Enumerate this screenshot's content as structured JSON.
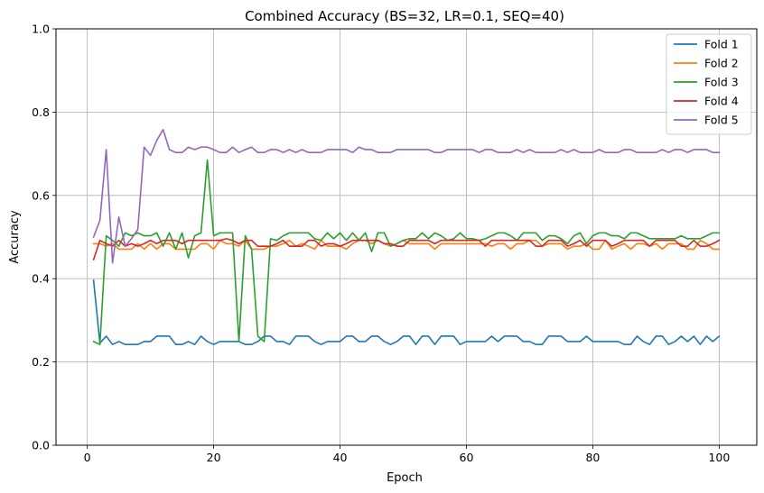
{
  "chart_data": {
    "type": "line",
    "title": "Combined Accuracy (BS=32, LR=0.1, SEQ=40)",
    "xlabel": "Epoch",
    "ylabel": "Accuracy",
    "xlim": [
      -4.95,
      105.95
    ],
    "ylim": [
      0.0,
      1.0
    ],
    "xticks": [
      0,
      20,
      40,
      60,
      80,
      100
    ],
    "yticks": [
      0.0,
      0.2,
      0.4,
      0.6,
      0.8,
      1.0
    ],
    "xtick_labels": [
      "0",
      "20",
      "40",
      "60",
      "80",
      "100"
    ],
    "ytick_labels": [
      "0.0",
      "0.2",
      "0.4",
      "0.6",
      "0.8",
      "1.0"
    ],
    "grid": true,
    "legend_position": "top-right",
    "x_start": 1,
    "x_end": 100,
    "series": [
      {
        "name": "Fold 1",
        "color": "#1f77b4",
        "values": [
          0.396,
          0.245,
          0.262,
          0.242,
          0.249,
          0.242,
          0.242,
          0.242,
          0.249,
          0.249,
          0.262,
          0.262,
          0.262,
          0.242,
          0.242,
          0.249,
          0.242,
          0.262,
          0.249,
          0.242,
          0.249,
          0.249,
          0.249,
          0.249,
          0.242,
          0.242,
          0.249,
          0.262,
          0.262,
          0.249,
          0.249,
          0.242,
          0.262,
          0.262,
          0.262,
          0.249,
          0.242,
          0.249,
          0.249,
          0.249,
          0.262,
          0.262,
          0.249,
          0.249,
          0.262,
          0.262,
          0.249,
          0.242,
          0.249,
          0.262,
          0.262,
          0.242,
          0.262,
          0.262,
          0.242,
          0.262,
          0.262,
          0.262,
          0.242,
          0.249,
          0.249,
          0.249,
          0.249,
          0.262,
          0.249,
          0.262,
          0.262,
          0.262,
          0.249,
          0.249,
          0.242,
          0.242,
          0.262,
          0.262,
          0.262,
          0.249,
          0.249,
          0.249,
          0.262,
          0.249,
          0.249,
          0.249,
          0.249,
          0.249,
          0.242,
          0.242,
          0.262,
          0.249,
          0.242,
          0.262,
          0.262,
          0.242,
          0.249,
          0.262,
          0.249,
          0.262,
          0.242,
          0.262,
          0.249,
          0.262
        ]
      },
      {
        "name": "Fold 2",
        "color": "#ff7f0e",
        "values": [
          0.484,
          0.484,
          0.478,
          0.484,
          0.471,
          0.471,
          0.471,
          0.484,
          0.471,
          0.484,
          0.471,
          0.484,
          0.484,
          0.471,
          0.471,
          0.471,
          0.471,
          0.484,
          0.484,
          0.471,
          0.492,
          0.484,
          0.484,
          0.478,
          0.492,
          0.471,
          0.471,
          0.471,
          0.478,
          0.478,
          0.484,
          0.492,
          0.478,
          0.484,
          0.478,
          0.471,
          0.492,
          0.478,
          0.478,
          0.478,
          0.471,
          0.484,
          0.492,
          0.492,
          0.484,
          0.492,
          0.484,
          0.478,
          0.484,
          0.492,
          0.484,
          0.484,
          0.484,
          0.484,
          0.471,
          0.484,
          0.484,
          0.484,
          0.484,
          0.484,
          0.484,
          0.484,
          0.484,
          0.478,
          0.484,
          0.484,
          0.471,
          0.484,
          0.484,
          0.492,
          0.492,
          0.478,
          0.484,
          0.484,
          0.484,
          0.471,
          0.478,
          0.478,
          0.484,
          0.471,
          0.471,
          0.492,
          0.471,
          0.478,
          0.484,
          0.471,
          0.484,
          0.484,
          0.478,
          0.484,
          0.471,
          0.484,
          0.484,
          0.484,
          0.471,
          0.471,
          0.492,
          0.484,
          0.471,
          0.471
        ]
      },
      {
        "name": "Fold 3",
        "color": "#2ca02c",
        "values": [
          0.249,
          0.242,
          0.503,
          0.492,
          0.478,
          0.51,
          0.503,
          0.51,
          0.503,
          0.503,
          0.51,
          0.478,
          0.51,
          0.471,
          0.51,
          0.45,
          0.503,
          0.51,
          0.685,
          0.503,
          0.51,
          0.51,
          0.51,
          0.249,
          0.503,
          0.471,
          0.262,
          0.249,
          0.496,
          0.492,
          0.503,
          0.51,
          0.51,
          0.51,
          0.51,
          0.496,
          0.492,
          0.51,
          0.496,
          0.51,
          0.492,
          0.51,
          0.492,
          0.51,
          0.465,
          0.51,
          0.51,
          0.478,
          0.484,
          0.492,
          0.496,
          0.496,
          0.51,
          0.496,
          0.51,
          0.503,
          0.492,
          0.496,
          0.51,
          0.496,
          0.496,
          0.492,
          0.496,
          0.503,
          0.51,
          0.51,
          0.503,
          0.492,
          0.51,
          0.51,
          0.51,
          0.492,
          0.503,
          0.503,
          0.496,
          0.484,
          0.503,
          0.51,
          0.484,
          0.503,
          0.51,
          0.51,
          0.503,
          0.503,
          0.496,
          0.51,
          0.51,
          0.503,
          0.496,
          0.496,
          0.496,
          0.496,
          0.496,
          0.503,
          0.496,
          0.496,
          0.496,
          0.503,
          0.51,
          0.51
        ]
      },
      {
        "name": "Fold 4",
        "color": "#d62728",
        "values": [
          0.446,
          0.492,
          0.484,
          0.478,
          0.492,
          0.478,
          0.484,
          0.478,
          0.484,
          0.492,
          0.484,
          0.492,
          0.492,
          0.492,
          0.484,
          0.492,
          0.492,
          0.492,
          0.492,
          0.492,
          0.492,
          0.496,
          0.492,
          0.484,
          0.492,
          0.492,
          0.478,
          0.478,
          0.478,
          0.484,
          0.492,
          0.478,
          0.478,
          0.478,
          0.492,
          0.492,
          0.478,
          0.484,
          0.484,
          0.478,
          0.484,
          0.492,
          0.492,
          0.492,
          0.492,
          0.492,
          0.484,
          0.484,
          0.478,
          0.478,
          0.492,
          0.492,
          0.492,
          0.492,
          0.484,
          0.492,
          0.492,
          0.492,
          0.492,
          0.492,
          0.492,
          0.492,
          0.478,
          0.492,
          0.492,
          0.492,
          0.492,
          0.492,
          0.492,
          0.492,
          0.478,
          0.478,
          0.492,
          0.492,
          0.492,
          0.478,
          0.484,
          0.492,
          0.478,
          0.492,
          0.492,
          0.492,
          0.478,
          0.484,
          0.492,
          0.492,
          0.492,
          0.492,
          0.478,
          0.492,
          0.492,
          0.492,
          0.492,
          0.478,
          0.478,
          0.492,
          0.478,
          0.478,
          0.484,
          0.492
        ]
      },
      {
        "name": "Fold 5",
        "color": "#9467bd",
        "values": [
          0.5,
          0.54,
          0.71,
          0.438,
          0.548,
          0.478,
          0.496,
          0.518,
          0.716,
          0.696,
          0.732,
          0.758,
          0.71,
          0.703,
          0.703,
          0.716,
          0.71,
          0.716,
          0.716,
          0.71,
          0.703,
          0.703,
          0.716,
          0.703,
          0.71,
          0.716,
          0.703,
          0.703,
          0.71,
          0.71,
          0.703,
          0.71,
          0.703,
          0.71,
          0.703,
          0.703,
          0.703,
          0.71,
          0.71,
          0.71,
          0.71,
          0.703,
          0.716,
          0.71,
          0.71,
          0.703,
          0.703,
          0.703,
          0.71,
          0.71,
          0.71,
          0.71,
          0.71,
          0.71,
          0.703,
          0.703,
          0.71,
          0.71,
          0.71,
          0.71,
          0.71,
          0.703,
          0.71,
          0.71,
          0.703,
          0.703,
          0.703,
          0.71,
          0.703,
          0.71,
          0.703,
          0.703,
          0.703,
          0.703,
          0.71,
          0.703,
          0.71,
          0.703,
          0.703,
          0.703,
          0.71,
          0.703,
          0.703,
          0.703,
          0.71,
          0.71,
          0.703,
          0.703,
          0.703,
          0.703,
          0.71,
          0.703,
          0.71,
          0.71,
          0.703,
          0.71,
          0.71,
          0.71,
          0.703,
          0.703
        ]
      }
    ]
  }
}
